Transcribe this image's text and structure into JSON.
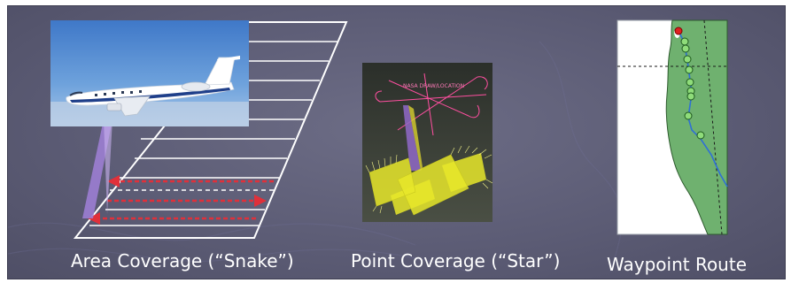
{
  "panels": [
    {
      "caption": "Area Coverage (“Snake”)",
      "colors": {
        "grid": "#ffffff",
        "arrow": "#e0303a",
        "beam": "#a080d8"
      }
    },
    {
      "caption": "Point Coverage (“Star”)",
      "colors": {
        "pattern": "#ff4fa0",
        "footprint": "#e8e82a",
        "beam": "#9068c8",
        "background": "#3a3f36"
      }
    },
    {
      "caption": "Waypoint Route",
      "colors": {
        "land": "#6fb16f",
        "water": "#ffffff",
        "route": "#2f6fd6",
        "waypoint": "#8fdc7a",
        "start": "#e02020"
      }
    }
  ],
  "point_label": "NASA DRAW/LOCATION"
}
